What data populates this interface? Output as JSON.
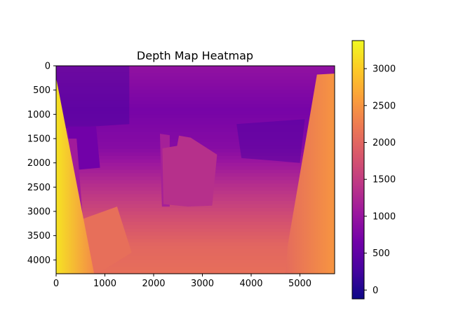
{
  "chart_data": {
    "type": "heatmap",
    "title": "Depth Map Heatmap",
    "xlabel": "",
    "ylabel": "",
    "xlim": [
      0,
      5712
    ],
    "ylim": [
      4284,
      0
    ],
    "xticks": [
      0,
      1000,
      2000,
      3000,
      4000,
      5000
    ],
    "yticks": [
      0,
      500,
      1000,
      1500,
      2000,
      2500,
      3000,
      3500,
      4000
    ],
    "colormap": "plasma",
    "colorbar": {
      "range": [
        -120,
        3380
      ],
      "ticks": [
        0,
        500,
        1000,
        1500,
        2000,
        2500,
        3000
      ]
    },
    "depth_field": {
      "background": [
        {
          "y": 0,
          "value": 950
        },
        {
          "y": 900,
          "value": 700
        },
        {
          "y": 1700,
          "value": 850
        },
        {
          "y": 2400,
          "value": 1300
        },
        {
          "y": 3100,
          "value": 1700
        },
        {
          "y": 3700,
          "value": 2000
        },
        {
          "y": 4284,
          "value": 2100
        }
      ],
      "regions": [
        {
          "name": "left-wall",
          "value": 3200,
          "edge_value": 2400,
          "polygon": [
            [
              0,
              250
            ],
            [
              780,
              4284
            ],
            [
              0,
              4284
            ]
          ]
        },
        {
          "name": "right-wall",
          "value": 2500,
          "edge_value": 2050,
          "polygon": [
            [
              5350,
              180
            ],
            [
              5712,
              160
            ],
            [
              5712,
              4284
            ],
            [
              4700,
              4284
            ],
            [
              4750,
              3700
            ]
          ]
        },
        {
          "name": "left-object",
          "value": 2100,
          "polygon": [
            [
              560,
              3150
            ],
            [
              1250,
              2900
            ],
            [
              1550,
              3850
            ],
            [
              850,
              4284
            ],
            [
              620,
              4284
            ]
          ]
        },
        {
          "name": "back-door",
          "value": 650,
          "polygon": [
            [
              230,
              1250
            ],
            [
              820,
              1250
            ],
            [
              900,
              2100
            ],
            [
              350,
              2150
            ]
          ]
        },
        {
          "name": "left-tall-panel",
          "value": 1150,
          "polygon": [
            [
              2130,
              1400
            ],
            [
              2330,
              1430
            ],
            [
              2330,
              2900
            ],
            [
              2170,
              2900
            ]
          ]
        },
        {
          "name": "center-furniture",
          "value": 1350,
          "polygon": [
            [
              2180,
              1700
            ],
            [
              2480,
              1650
            ],
            [
              2520,
              1440
            ],
            [
              2760,
              1480
            ],
            [
              3300,
              1830
            ],
            [
              3200,
              2880
            ],
            [
              2700,
              2900
            ],
            [
              2200,
              2850
            ]
          ]
        },
        {
          "name": "far-left-strip",
          "value": 1100,
          "polygon": [
            [
              220,
              1500
            ],
            [
              420,
              1500
            ],
            [
              560,
              3300
            ],
            [
              420,
              3300
            ]
          ]
        },
        {
          "name": "upper-dark-zone",
          "value": 350,
          "polygon": [
            [
              0,
              0
            ],
            [
              1500,
              0
            ],
            [
              1500,
              1200
            ],
            [
              0,
              1300
            ]
          ]
        },
        {
          "name": "right-dark-zone",
          "value": 380,
          "polygon": [
            [
              3700,
              1200
            ],
            [
              5100,
              1100
            ],
            [
              5000,
              2000
            ],
            [
              3800,
              1900
            ]
          ]
        }
      ]
    }
  }
}
